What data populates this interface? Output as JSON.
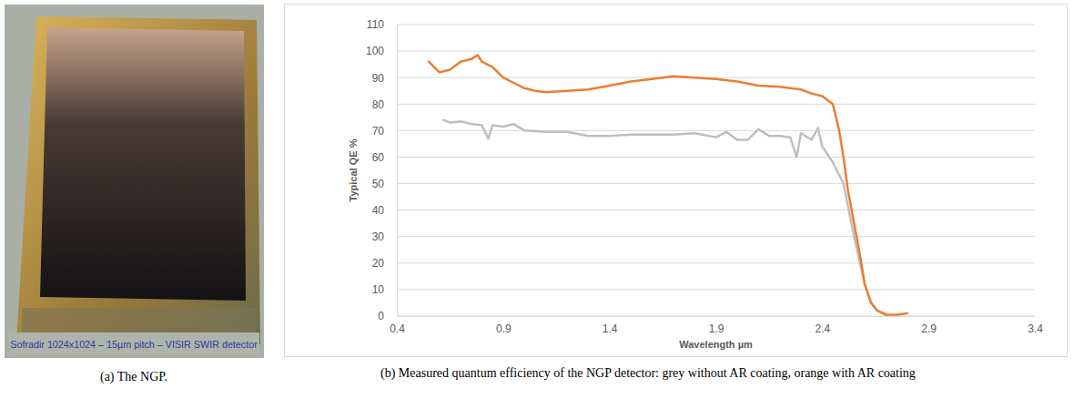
{
  "chart_data": {
    "type": "line",
    "ylabel": "Typical QE %",
    "xlabel": "Wavelength µm",
    "caption": "(b) Measured quantum efficiency of the NGP detector: grey without AR coating, orange with AR coating",
    "xlim": [
      0.4,
      3.4
    ],
    "xticks": [
      0.4,
      0.9,
      1.4,
      1.9,
      2.4,
      2.9,
      3.4
    ],
    "ylim": [
      0,
      110
    ],
    "yticks": [
      0,
      10,
      20,
      30,
      40,
      50,
      60,
      70,
      80,
      90,
      100,
      110
    ],
    "grid": true,
    "series": [
      {
        "color": "#ed7d31",
        "x": [
          0.55,
          0.6,
          0.65,
          0.7,
          0.75,
          0.78,
          0.8,
          0.85,
          0.9,
          0.95,
          1.0,
          1.05,
          1.1,
          1.2,
          1.3,
          1.4,
          1.5,
          1.6,
          1.7,
          1.8,
          1.9,
          2.0,
          2.1,
          2.2,
          2.3,
          2.35,
          2.4,
          2.45,
          2.48,
          2.5,
          2.52,
          2.55,
          2.58,
          2.6,
          2.63,
          2.66,
          2.7,
          2.75,
          2.8
        ],
        "values": [
          96,
          92,
          93,
          96,
          97,
          98.5,
          96,
          94,
          90,
          88,
          86,
          85,
          84.5,
          85,
          85.5,
          87,
          88.5,
          89.5,
          90.5,
          90,
          89.5,
          88.5,
          87,
          86.5,
          85.5,
          84,
          83,
          80,
          70,
          60,
          48,
          35,
          22,
          12,
          5,
          2,
          0.5,
          0.5,
          1
        ]
      },
      {
        "color": "#bfbfbf",
        "x": [
          0.62,
          0.65,
          0.7,
          0.75,
          0.8,
          0.83,
          0.85,
          0.9,
          0.95,
          1.0,
          1.1,
          1.2,
          1.3,
          1.4,
          1.5,
          1.6,
          1.7,
          1.8,
          1.9,
          1.95,
          2.0,
          2.05,
          2.1,
          2.15,
          2.2,
          2.25,
          2.28,
          2.3,
          2.35,
          2.38,
          2.4,
          2.45,
          2.5,
          2.55,
          2.6,
          2.63,
          2.66,
          2.7
        ],
        "values": [
          74,
          73,
          73.5,
          72.5,
          72,
          67,
          72,
          71.5,
          72.5,
          70,
          69.5,
          69.5,
          68,
          68,
          68.5,
          68.5,
          68.5,
          69,
          67.5,
          69.5,
          66.5,
          66.5,
          70.5,
          68,
          68,
          67.5,
          60,
          69,
          66.5,
          71,
          64,
          58,
          50,
          30,
          12,
          5,
          2,
          1
        ]
      }
    ]
  },
  "photo": {
    "label": "Sofradir 1024x1024 – 15µm pitch – VISIR SWIR detector",
    "caption": "(a) The NGP."
  }
}
